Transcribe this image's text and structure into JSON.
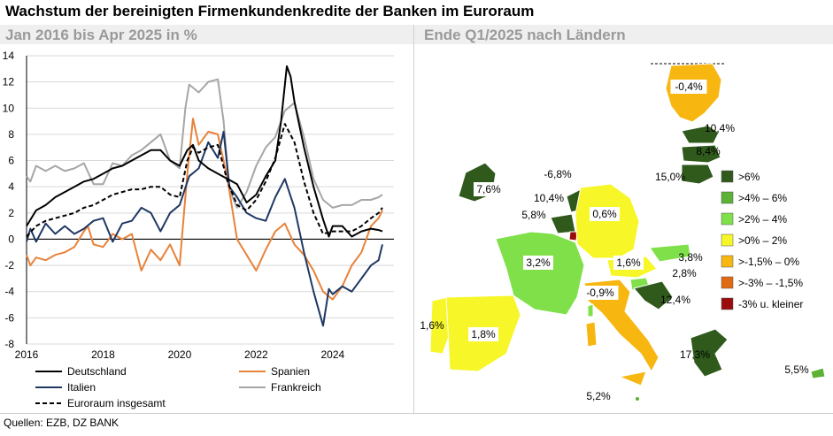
{
  "title": "Wachstum der bereinigten Firmenkundenkredite der Banken im Euroraum",
  "left_subtitle": "Jan 2016 bis Apr 2025 in %",
  "right_subtitle": "Ende Q1/2025 nach Ländern",
  "source": "Quellen: EZB, DZ BANK",
  "colors": {
    "deutschland": "#000000",
    "spanien": "#e8823a",
    "italien": "#1f3864",
    "frankreich": "#a6a6a6",
    "euroraum": "#000000",
    "subtitle": "#9a9a9a"
  },
  "chart_data": [
    {
      "type": "line",
      "x_ticks": [
        "2016",
        "2018",
        "2020",
        "2022",
        "2024"
      ],
      "y_ticks": [
        "14",
        "12",
        "10",
        "8",
        "6",
        "4",
        "2",
        "0",
        "-2",
        "-4",
        "-6",
        "-8"
      ],
      "xlim": [
        2016.0,
        2025.6
      ],
      "ylim": [
        -8,
        14
      ],
      "grid": true,
      "legend_position": "bottom",
      "series": [
        {
          "name": "Deutschland",
          "style": "solid",
          "color": "#000000",
          "points": [
            [
              2016.0,
              1.0
            ],
            [
              2016.25,
              2.2
            ],
            [
              2016.5,
              2.6
            ],
            [
              2016.75,
              3.2
            ],
            [
              2017.0,
              3.6
            ],
            [
              2017.25,
              4.0
            ],
            [
              2017.5,
              4.4
            ],
            [
              2017.75,
              4.6
            ],
            [
              2018.0,
              5.0
            ],
            [
              2018.25,
              5.4
            ],
            [
              2018.5,
              5.6
            ],
            [
              2018.75,
              6.0
            ],
            [
              2019.0,
              6.4
            ],
            [
              2019.25,
              6.8
            ],
            [
              2019.5,
              6.8
            ],
            [
              2019.75,
              6.0
            ],
            [
              2020.0,
              5.6
            ],
            [
              2020.2,
              6.8
            ],
            [
              2020.35,
              7.2
            ],
            [
              2020.5,
              6.0
            ],
            [
              2020.75,
              5.4
            ],
            [
              2021.0,
              5.0
            ],
            [
              2021.25,
              4.6
            ],
            [
              2021.5,
              4.2
            ],
            [
              2021.75,
              2.8
            ],
            [
              2022.0,
              3.4
            ],
            [
              2022.25,
              4.8
            ],
            [
              2022.5,
              6.0
            ],
            [
              2022.65,
              9.0
            ],
            [
              2022.8,
              13.2
            ],
            [
              2022.9,
              12.4
            ],
            [
              2023.0,
              10.5
            ],
            [
              2023.25,
              7.0
            ],
            [
              2023.5,
              4.0
            ],
            [
              2023.75,
              1.5
            ],
            [
              2023.9,
              0.2
            ],
            [
              2024.0,
              1.0
            ],
            [
              2024.25,
              1.0
            ],
            [
              2024.5,
              0.2
            ],
            [
              2024.75,
              0.6
            ],
            [
              2025.0,
              0.8
            ],
            [
              2025.2,
              0.7
            ],
            [
              2025.3,
              0.6
            ]
          ]
        },
        {
          "name": "Spanien",
          "style": "solid",
          "color": "#e8823a",
          "points": [
            [
              2016.0,
              -1.2
            ],
            [
              2016.1,
              -2.0
            ],
            [
              2016.25,
              -1.4
            ],
            [
              2016.5,
              -1.6
            ],
            [
              2016.75,
              -1.2
            ],
            [
              2017.0,
              -1.0
            ],
            [
              2017.25,
              -0.6
            ],
            [
              2017.5,
              0.6
            ],
            [
              2017.6,
              1.0
            ],
            [
              2017.75,
              -0.4
            ],
            [
              2018.0,
              -0.6
            ],
            [
              2018.25,
              0.4
            ],
            [
              2018.5,
              0.0
            ],
            [
              2018.75,
              0.4
            ],
            [
              2019.0,
              -2.4
            ],
            [
              2019.25,
              -0.8
            ],
            [
              2019.5,
              -1.6
            ],
            [
              2019.75,
              -0.4
            ],
            [
              2020.0,
              -2.0
            ],
            [
              2020.2,
              5.0
            ],
            [
              2020.35,
              9.2
            ],
            [
              2020.5,
              7.2
            ],
            [
              2020.75,
              8.2
            ],
            [
              2021.0,
              8.0
            ],
            [
              2021.25,
              4.6
            ],
            [
              2021.5,
              0.0
            ],
            [
              2021.75,
              -1.2
            ],
            [
              2022.0,
              -2.4
            ],
            [
              2022.25,
              -0.8
            ],
            [
              2022.5,
              0.6
            ],
            [
              2022.75,
              1.2
            ],
            [
              2023.0,
              -0.4
            ],
            [
              2023.25,
              -1.2
            ],
            [
              2023.5,
              -2.4
            ],
            [
              2023.75,
              -4.0
            ],
            [
              2024.0,
              -4.6
            ],
            [
              2024.25,
              -3.6
            ],
            [
              2024.5,
              -2.0
            ],
            [
              2024.75,
              -1.0
            ],
            [
              2025.0,
              1.0
            ],
            [
              2025.2,
              1.6
            ],
            [
              2025.3,
              2.2
            ]
          ]
        },
        {
          "name": "Italien",
          "style": "solid",
          "color": "#1f3864",
          "points": [
            [
              2016.0,
              -0.2
            ],
            [
              2016.1,
              0.8
            ],
            [
              2016.25,
              -0.2
            ],
            [
              2016.5,
              1.2
            ],
            [
              2016.75,
              0.4
            ],
            [
              2017.0,
              1.0
            ],
            [
              2017.25,
              0.4
            ],
            [
              2017.5,
              0.8
            ],
            [
              2017.75,
              1.4
            ],
            [
              2018.0,
              1.6
            ],
            [
              2018.25,
              -0.2
            ],
            [
              2018.5,
              1.2
            ],
            [
              2018.75,
              1.4
            ],
            [
              2019.0,
              2.4
            ],
            [
              2019.25,
              2.0
            ],
            [
              2019.5,
              0.6
            ],
            [
              2019.75,
              2.0
            ],
            [
              2020.0,
              2.6
            ],
            [
              2020.25,
              4.8
            ],
            [
              2020.5,
              5.4
            ],
            [
              2020.75,
              7.4
            ],
            [
              2021.0,
              6.2
            ],
            [
              2021.15,
              8.2
            ],
            [
              2021.3,
              4.0
            ],
            [
              2021.5,
              3.2
            ],
            [
              2021.75,
              2.0
            ],
            [
              2022.0,
              1.6
            ],
            [
              2022.25,
              1.4
            ],
            [
              2022.5,
              3.2
            ],
            [
              2022.75,
              4.6
            ],
            [
              2023.0,
              2.4
            ],
            [
              2023.25,
              -1.0
            ],
            [
              2023.5,
              -4.0
            ],
            [
              2023.75,
              -6.6
            ],
            [
              2023.9,
              -3.8
            ],
            [
              2024.0,
              -4.2
            ],
            [
              2024.25,
              -3.6
            ],
            [
              2024.5,
              -4.0
            ],
            [
              2024.75,
              -3.0
            ],
            [
              2025.0,
              -2.0
            ],
            [
              2025.2,
              -1.6
            ],
            [
              2025.3,
              -0.4
            ]
          ]
        },
        {
          "name": "Frankreich",
          "style": "solid",
          "color": "#a6a6a6",
          "points": [
            [
              2016.0,
              4.8
            ],
            [
              2016.1,
              4.4
            ],
            [
              2016.25,
              5.6
            ],
            [
              2016.5,
              5.2
            ],
            [
              2016.75,
              5.6
            ],
            [
              2017.0,
              5.2
            ],
            [
              2017.25,
              5.4
            ],
            [
              2017.5,
              5.8
            ],
            [
              2017.75,
              4.2
            ],
            [
              2018.0,
              4.2
            ],
            [
              2018.25,
              5.8
            ],
            [
              2018.5,
              5.6
            ],
            [
              2018.75,
              6.4
            ],
            [
              2019.0,
              6.8
            ],
            [
              2019.25,
              7.4
            ],
            [
              2019.5,
              8.0
            ],
            [
              2019.75,
              6.0
            ],
            [
              2020.0,
              5.4
            ],
            [
              2020.15,
              10.0
            ],
            [
              2020.25,
              11.8
            ],
            [
              2020.5,
              11.2
            ],
            [
              2020.75,
              12.0
            ],
            [
              2021.0,
              12.2
            ],
            [
              2021.15,
              9.0
            ],
            [
              2021.3,
              3.8
            ],
            [
              2021.5,
              2.4
            ],
            [
              2021.75,
              3.6
            ],
            [
              2022.0,
              5.6
            ],
            [
              2022.25,
              7.0
            ],
            [
              2022.5,
              7.8
            ],
            [
              2022.75,
              9.8
            ],
            [
              2023.0,
              10.4
            ],
            [
              2023.25,
              7.8
            ],
            [
              2023.5,
              4.6
            ],
            [
              2023.75,
              3.0
            ],
            [
              2024.0,
              2.4
            ],
            [
              2024.25,
              2.6
            ],
            [
              2024.5,
              2.6
            ],
            [
              2024.75,
              3.0
            ],
            [
              2025.0,
              3.0
            ],
            [
              2025.2,
              3.2
            ],
            [
              2025.3,
              3.4
            ]
          ]
        },
        {
          "name": "Euroraum insgesamt",
          "style": "dashed",
          "color": "#000000",
          "points": [
            [
              2016.0,
              0.2
            ],
            [
              2016.25,
              1.0
            ],
            [
              2016.5,
              1.4
            ],
            [
              2016.75,
              1.6
            ],
            [
              2017.0,
              1.8
            ],
            [
              2017.25,
              2.0
            ],
            [
              2017.5,
              2.4
            ],
            [
              2017.75,
              2.6
            ],
            [
              2018.0,
              3.0
            ],
            [
              2018.25,
              3.4
            ],
            [
              2018.5,
              3.6
            ],
            [
              2018.75,
              3.8
            ],
            [
              2019.0,
              3.8
            ],
            [
              2019.25,
              4.0
            ],
            [
              2019.5,
              4.0
            ],
            [
              2019.75,
              3.4
            ],
            [
              2020.0,
              3.2
            ],
            [
              2020.2,
              6.0
            ],
            [
              2020.35,
              7.0
            ],
            [
              2020.5,
              6.6
            ],
            [
              2020.75,
              7.0
            ],
            [
              2021.0,
              7.2
            ],
            [
              2021.25,
              4.4
            ],
            [
              2021.5,
              2.6
            ],
            [
              2021.75,
              2.2
            ],
            [
              2022.0,
              3.0
            ],
            [
              2022.25,
              4.4
            ],
            [
              2022.5,
              6.2
            ],
            [
              2022.75,
              8.8
            ],
            [
              2023.0,
              7.4
            ],
            [
              2023.25,
              4.4
            ],
            [
              2023.5,
              2.0
            ],
            [
              2023.75,
              0.4
            ],
            [
              2024.0,
              0.6
            ],
            [
              2024.25,
              0.6
            ],
            [
              2024.5,
              0.6
            ],
            [
              2024.75,
              1.0
            ],
            [
              2025.0,
              1.6
            ],
            [
              2025.2,
              2.0
            ],
            [
              2025.3,
              2.4
            ]
          ]
        }
      ]
    },
    {
      "type": "map",
      "legend": [
        {
          "label": ">6%",
          "color": "#2f5a1c"
        },
        {
          "label": ">4% – 6%",
          "color": "#5bb234"
        },
        {
          "label": ">2% – 4%",
          "color": "#7fe04a"
        },
        {
          "label": ">0% – 2%",
          "color": "#f6f629"
        },
        {
          "label": ">-1,5% – 0%",
          "color": "#f8b611"
        },
        {
          "label": ">-3% – -1,5%",
          "color": "#e06a12"
        },
        {
          "label": "-3% u. kleiner",
          "color": "#9a0b0b"
        }
      ],
      "country_values": {
        "FI": "-0,4%",
        "EE": "10,4%",
        "LV": "8,4%",
        "LT": "15,0%",
        "IE": "7,6%",
        "NL": "-6,8%",
        "BE": "10,4%",
        "LU": "5,8%",
        "DE": "0,6%",
        "FR": "3,2%",
        "AT": "1,6%",
        "SK": "3,8%",
        "SI": "2,8%",
        "HR": "12,4%",
        "IT": "-0,9%",
        "PT": "1,6%",
        "ES": "1,8%",
        "GR": "17,3%",
        "CY": "5,5%",
        "MT": "5,2%"
      }
    }
  ]
}
